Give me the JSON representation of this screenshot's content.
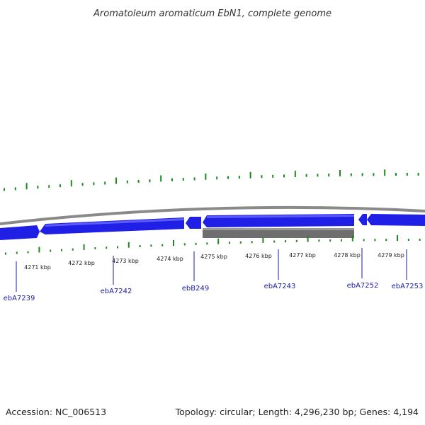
{
  "title": "Aromatoleum aromaticum EbN1, complete genome",
  "footer": {
    "accession": "Accession: NC_006513",
    "summary": "Topology: circular; Length: 4,296,230 bp; Genes: 4,194"
  },
  "colors": {
    "gene_forward": "#1f1fe6",
    "gene_highlight": "#5a5aff",
    "backbone": "#8a8a8a",
    "gray_feature": "#6e6e6e",
    "tick_green": "#1a8a1a",
    "label_blue": "#1a1aa8"
  },
  "scale_ticks": [
    "4271 kbp",
    "4272 kbp",
    "4273 kbp",
    "4274 kbp",
    "4275 kbp",
    "4276 kbp",
    "4277 kbp",
    "4278 kbp",
    "4279 kbp"
  ],
  "gene_labels": [
    "ebA7239",
    "ebA7242",
    "ebB249",
    "ebA7243",
    "ebA7252",
    "ebA7253"
  ]
}
